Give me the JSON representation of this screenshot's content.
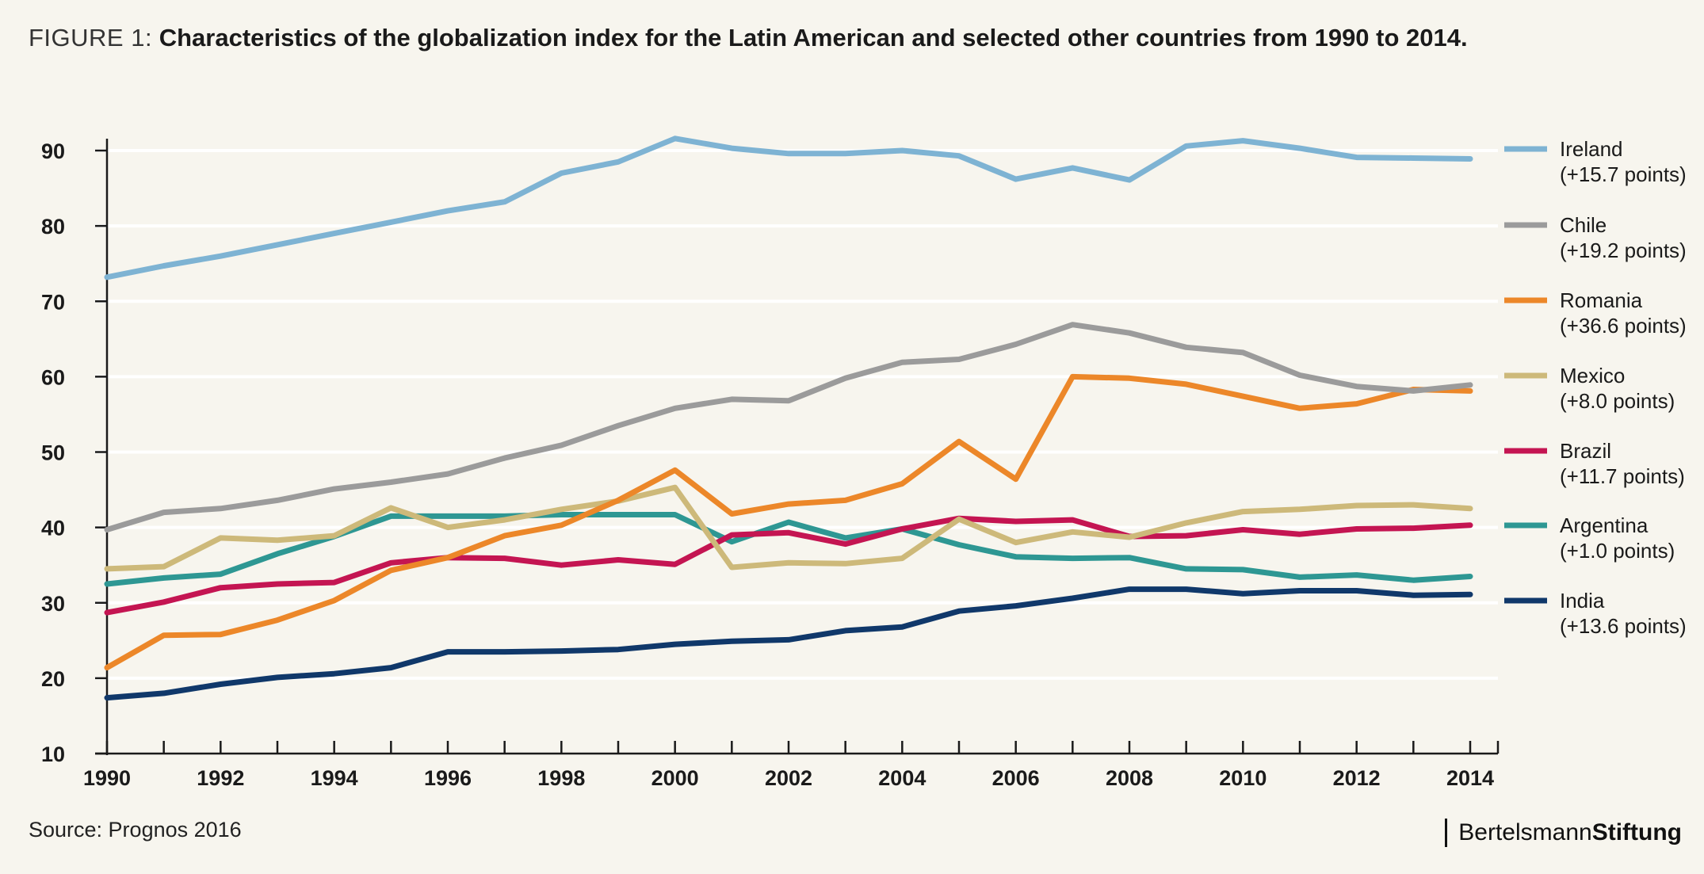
{
  "header": {
    "prefix": "FIGURE 1:",
    "title": "Characteristics of the globalization index for the Latin American and selected other countries from 1990 to 2014."
  },
  "footer": {
    "source": "Source: Prognos 2016",
    "brand_part1": "Bertelsmann",
    "brand_part2": "Stiftung"
  },
  "chart_data": {
    "type": "line",
    "title": "Characteristics of the globalization index for the Latin American and selected other countries from 1990 to 2014.",
    "xlabel": "",
    "ylabel": "",
    "xlim": [
      1990,
      2014
    ],
    "ylim": [
      10,
      90
    ],
    "x_ticks": [
      1990,
      1992,
      1994,
      1996,
      1998,
      2000,
      2002,
      2004,
      2006,
      2008,
      2010,
      2012,
      2014
    ],
    "y_ticks": [
      10,
      20,
      30,
      40,
      50,
      60,
      70,
      80,
      90
    ],
    "grid": "horizontal",
    "legend_position": "right",
    "x": [
      1990,
      1991,
      1992,
      1993,
      1994,
      1995,
      1996,
      1997,
      1998,
      1999,
      2000,
      2001,
      2002,
      2003,
      2004,
      2005,
      2006,
      2007,
      2008,
      2009,
      2010,
      2011,
      2012,
      2013,
      2014
    ],
    "series": [
      {
        "name": "Ireland",
        "note": "(+15.7 points)",
        "color": "#7eb3d3",
        "values": [
          73.2,
          74.7,
          76.0,
          77.5,
          79.0,
          80.5,
          82.0,
          83.2,
          87.0,
          88.5,
          91.6,
          90.3,
          89.6,
          89.6,
          90.0,
          89.3,
          86.2,
          87.7,
          86.1,
          90.6,
          91.3,
          90.3,
          89.1,
          89.0,
          88.9
        ]
      },
      {
        "name": "Chile",
        "note": "(+19.2 points)",
        "color": "#9b9b9b",
        "values": [
          39.7,
          42.0,
          42.5,
          43.6,
          45.1,
          46.0,
          47.1,
          49.2,
          50.9,
          53.5,
          55.8,
          57.0,
          56.8,
          59.8,
          61.9,
          62.3,
          64.3,
          66.9,
          65.8,
          63.9,
          63.2,
          60.2,
          58.7,
          58.1,
          58.9
        ]
      },
      {
        "name": "Romania",
        "note": "(+36.6 points)",
        "color": "#ec8729",
        "values": [
          21.4,
          25.7,
          25.8,
          27.7,
          30.3,
          34.3,
          36.0,
          38.9,
          40.3,
          43.6,
          47.6,
          41.8,
          43.1,
          43.6,
          45.8,
          51.4,
          46.4,
          60.0,
          59.8,
          59.0,
          57.4,
          55.8,
          56.4,
          58.3,
          58.1
        ]
      },
      {
        "name": "Mexico",
        "note": "(+8.0 points)",
        "color": "#cdb97a",
        "values": [
          34.5,
          34.8,
          38.6,
          38.3,
          38.9,
          42.6,
          40.0,
          41.0,
          42.4,
          43.5,
          45.3,
          34.7,
          35.3,
          35.2,
          35.9,
          41.1,
          38.0,
          39.4,
          38.7,
          40.6,
          42.1,
          42.4,
          42.9,
          43.0,
          42.5
        ]
      },
      {
        "name": "Brazil",
        "note": "(+11.7 points)",
        "color": "#c41552",
        "values": [
          28.7,
          30.1,
          32.0,
          32.5,
          32.7,
          35.3,
          36.0,
          35.9,
          35.0,
          35.7,
          35.1,
          39.0,
          39.3,
          37.8,
          39.8,
          41.2,
          40.8,
          41.0,
          38.8,
          38.9,
          39.7,
          39.1,
          39.8,
          39.9,
          40.3
        ]
      },
      {
        "name": "Argentina",
        "note": "(+1.0 points)",
        "color": "#2e9793",
        "values": [
          32.5,
          33.3,
          33.8,
          36.5,
          38.8,
          41.5,
          41.5,
          41.5,
          41.7,
          41.7,
          41.7,
          38.1,
          40.7,
          38.6,
          39.8,
          37.7,
          36.1,
          35.9,
          36.0,
          34.5,
          34.4,
          33.4,
          33.7,
          33.0,
          33.5
        ]
      },
      {
        "name": "India",
        "note": "(+13.6 points)",
        "color": "#10386a",
        "values": [
          17.4,
          18.0,
          19.2,
          20.1,
          20.6,
          21.4,
          23.5,
          23.5,
          23.6,
          23.8,
          24.5,
          24.9,
          25.1,
          26.3,
          26.8,
          28.9,
          29.6,
          30.6,
          31.8,
          31.8,
          31.2,
          31.6,
          31.6,
          31.0,
          31.1
        ]
      }
    ]
  }
}
